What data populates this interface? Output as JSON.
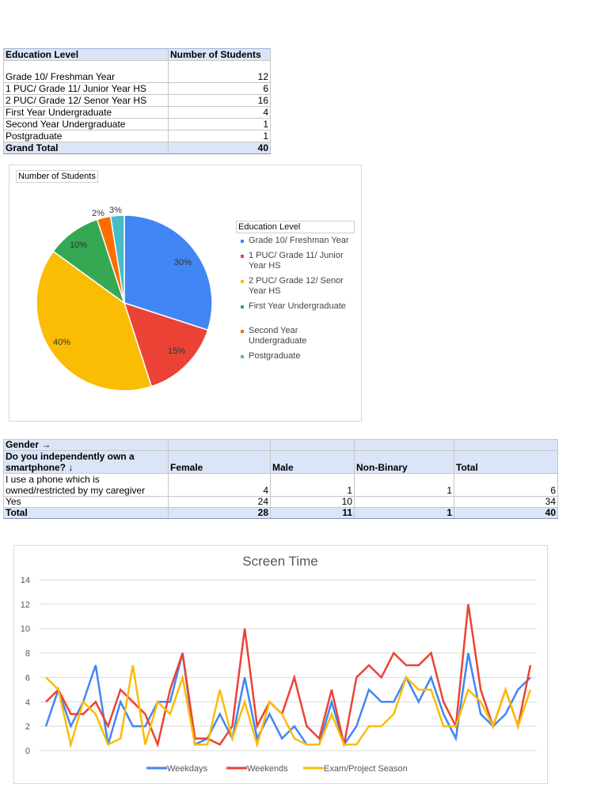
{
  "education_table": {
    "headers": [
      "Education Level",
      "Number of Students"
    ],
    "rows": [
      {
        "label": "Grade 10/ Freshman Year",
        "value": "12"
      },
      {
        "label": "1 PUC/ Grade 11/ Junior Year HS",
        "value": "6"
      },
      {
        "label": "2 PUC/ Grade 12/ Senor Year HS",
        "value": "16"
      },
      {
        "label": "First Year Undergraduate",
        "value": "4"
      },
      {
        "label": "Second Year Undergraduate",
        "value": "1"
      },
      {
        "label": "Postgraduate",
        "value": "1"
      }
    ],
    "total": {
      "label": "Grand Total",
      "value": "40"
    }
  },
  "gender_table": {
    "header_row1": "Gender →",
    "header_row2": "Do you independently own a smartphone? ↓",
    "columns": [
      "Female",
      "Male",
      "Non-Binary",
      "Total"
    ],
    "rows": [
      {
        "label": "I use a phone which is owned/restricted by my caregiver",
        "values": [
          "4",
          "1",
          "1",
          "6"
        ]
      },
      {
        "label": "Yes",
        "values": [
          "24",
          "10",
          "",
          "34"
        ]
      }
    ],
    "total": {
      "label": "Total",
      "values": [
        "28",
        "11",
        "1",
        "40"
      ]
    }
  },
  "chart_data": [
    {
      "type": "pie",
      "title": "Number of Students",
      "legend_title": "Education Level",
      "legend_position": "right",
      "categories": [
        "Grade 10/ Freshman Year",
        "1 PUC/ Grade 11/ Junior Year HS",
        "2 PUC/ Grade 12/ Senor Year HS",
        "First Year Undergraduate",
        "Second Year Undergraduate",
        "Postgraduate"
      ],
      "values": [
        12,
        6,
        16,
        4,
        1,
        1
      ],
      "labels": [
        "30%",
        "15%",
        "40%",
        "10%",
        "2%",
        "3%"
      ],
      "colors": [
        "#4285f4",
        "#ea4335",
        "#fbbc04",
        "#34a853",
        "#ff6d01",
        "#46bdc6"
      ]
    },
    {
      "type": "line",
      "title": "Screen Time",
      "xlabel": "",
      "ylabel": "",
      "ylim": [
        0,
        14
      ],
      "yticks": [
        0,
        2,
        4,
        6,
        8,
        10,
        12,
        14
      ],
      "grid": true,
      "legend_position": "bottom",
      "x": [
        1,
        2,
        3,
        4,
        5,
        6,
        7,
        8,
        9,
        10,
        11,
        12,
        13,
        14,
        15,
        16,
        17,
        18,
        19,
        20,
        21,
        22,
        23,
        24,
        25,
        26,
        27,
        28,
        29,
        30,
        31,
        32,
        33,
        34,
        35,
        36,
        37,
        38,
        39,
        40
      ],
      "series": [
        {
          "name": "Weekdays",
          "color": "#4285f4",
          "values": [
            2,
            5,
            2,
            4,
            7,
            0.5,
            4,
            2,
            2,
            4,
            4,
            8,
            0.5,
            1,
            3,
            1,
            6,
            1,
            3,
            1,
            2,
            0.5,
            0.5,
            4,
            0.5,
            2,
            5,
            4,
            4,
            6,
            4,
            6,
            3,
            1,
            8,
            3,
            2,
            3,
            5,
            6
          ]
        },
        {
          "name": "Weekends",
          "color": "#ea4335",
          "values": [
            4,
            5,
            3,
            3,
            4,
            2,
            5,
            4,
            3,
            0.5,
            5,
            8,
            1,
            1,
            0.5,
            2,
            10,
            2,
            4,
            3,
            6,
            2,
            1,
            5,
            0.5,
            6,
            7,
            6,
            8,
            7,
            7,
            8,
            4,
            2,
            12,
            5,
            2,
            5,
            2,
            7
          ]
        },
        {
          "name": "Exam/Project Season",
          "color": "#fbbc04",
          "values": [
            6,
            5,
            0.5,
            4,
            3,
            0.5,
            1,
            7,
            0.5,
            4,
            3,
            6,
            0.5,
            0.5,
            5,
            1,
            4,
            0.5,
            4,
            3,
            1,
            0.5,
            0.5,
            3,
            0.5,
            0.5,
            2,
            2,
            3,
            6,
            5,
            5,
            2,
            2,
            5,
            4,
            2,
            5,
            2,
            5
          ]
        }
      ]
    }
  ]
}
